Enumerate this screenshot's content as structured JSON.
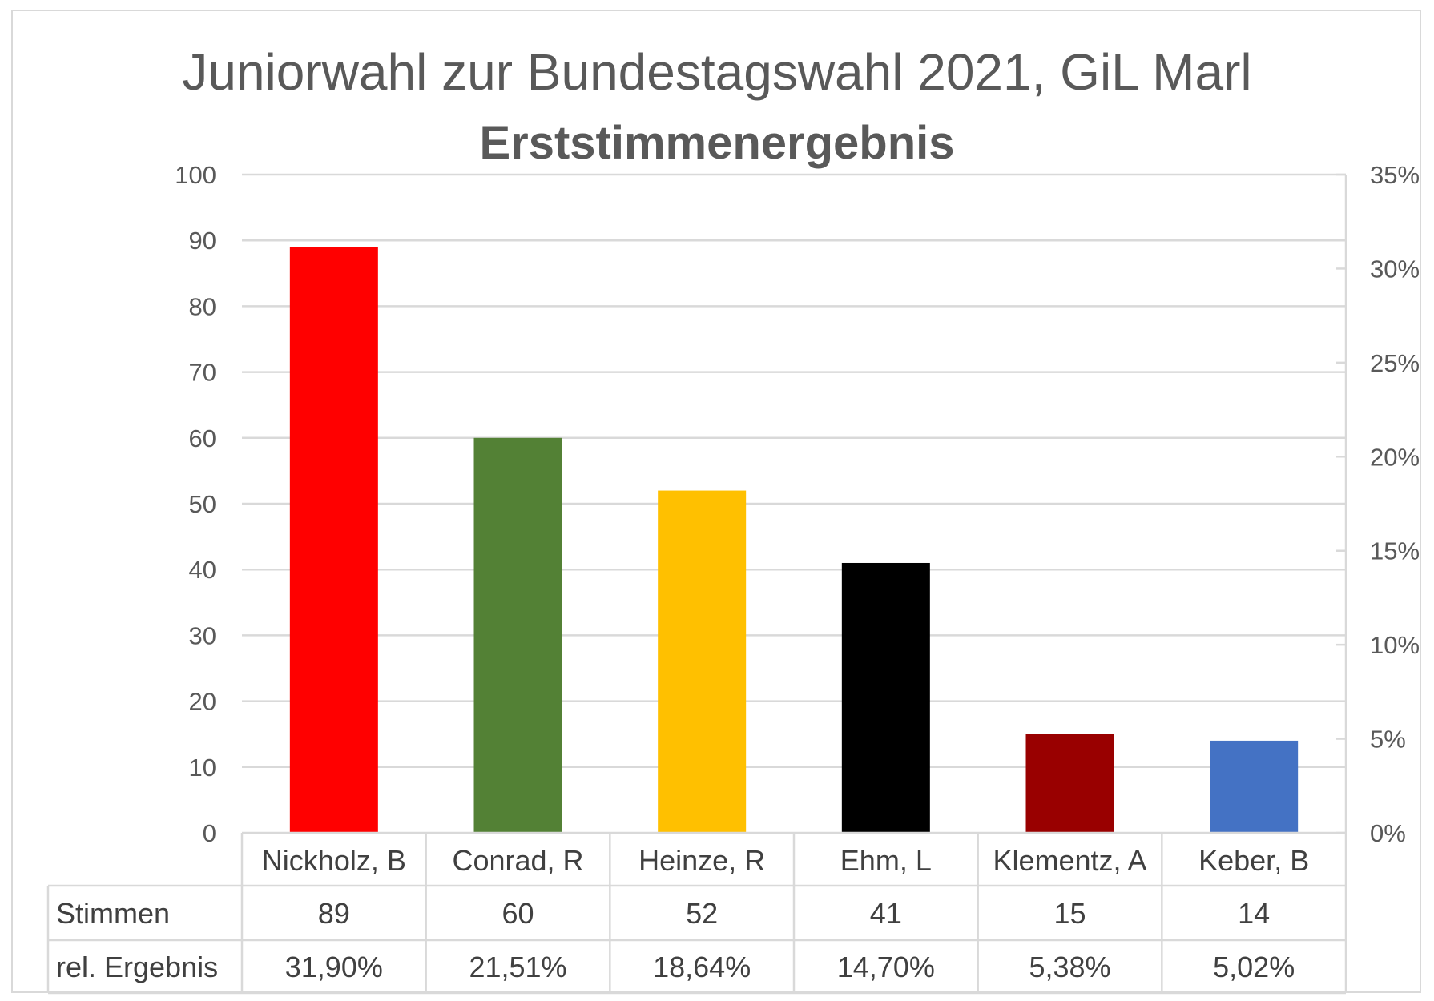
{
  "chart_data": {
    "type": "bar",
    "title": "Juniorwahl zur Bundestagswahl 2021, GiL Marl",
    "subtitle": "Erststimmenergebnis",
    "categories": [
      "Nickholz, B",
      "Conrad, R",
      "Heinze, R",
      "Ehm, L",
      "Klementz, A",
      "Keber, B"
    ],
    "values": [
      89,
      60,
      52,
      41,
      15,
      14
    ],
    "bar_colors": [
      "#FF0000",
      "#538135",
      "#FFC000",
      "#000000",
      "#990000",
      "#4472C4"
    ],
    "ylim": [
      0,
      100
    ],
    "yticks": [
      0,
      10,
      20,
      30,
      40,
      50,
      60,
      70,
      80,
      90,
      100
    ],
    "y2lim": [
      0,
      0.35
    ],
    "y2ticks": [
      "0%",
      "5%",
      "10%",
      "15%",
      "20%",
      "25%",
      "30%",
      "35%"
    ],
    "grid": true,
    "data_table": {
      "rows": [
        {
          "label": "Stimmen",
          "values": [
            "89",
            "60",
            "52",
            "41",
            "15",
            "14"
          ]
        },
        {
          "label": "rel. Ergebnis",
          "values": [
            "31,90%",
            "21,51%",
            "18,64%",
            "14,70%",
            "5,38%",
            "5,02%"
          ]
        }
      ]
    }
  }
}
